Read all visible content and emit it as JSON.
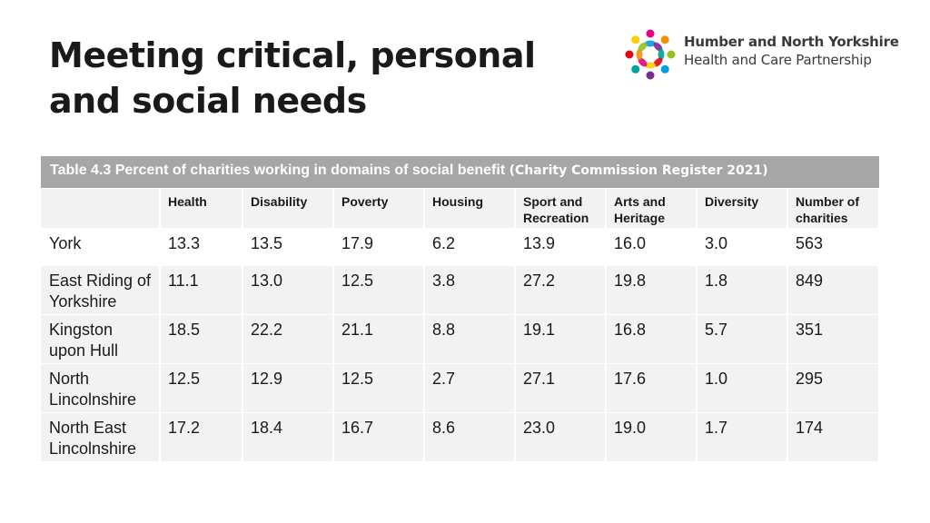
{
  "slide": {
    "title": "Meeting critical, personal and social needs"
  },
  "logo": {
    "line1": "Humber and North Yorkshire",
    "line2": "Health and Care Partnership",
    "colors": [
      "#e6007e",
      "#f39200",
      "#95c11f",
      "#009fe3",
      "#7b2a8f",
      "#00a19a",
      "#e30613",
      "#ffcc00"
    ]
  },
  "table": {
    "caption_main": "Table 4.3 Percent of charities working in domains of social benefit ",
    "caption_source": "(Charity Commission Register 2021)",
    "headers": [
      "",
      "Health",
      "Disability",
      "Poverty",
      "Housing",
      "Sport and Recreation",
      "Arts and Heritage",
      "Diversity",
      "Number of charities"
    ],
    "rows": [
      [
        "York",
        "13.3",
        "13.5",
        "17.9",
        "6.2",
        "13.9",
        "16.0",
        "3.0",
        "563"
      ],
      [
        "East Riding of Yorkshire",
        "11.1",
        "13.0",
        "12.5",
        "3.8",
        "27.2",
        "19.8",
        "1.8",
        "849"
      ],
      [
        "Kingston upon Hull",
        "18.5",
        "22.2",
        "21.1",
        "8.8",
        "19.1",
        "16.8",
        "5.7",
        "351"
      ],
      [
        "North Lincolnshire",
        "12.5",
        "12.9",
        "12.5",
        "2.7",
        "27.1",
        "17.6",
        "1.0",
        "295"
      ],
      [
        "North East Lincolnshire",
        "17.2",
        "18.4",
        "16.7",
        "8.6",
        "23.0",
        "19.0",
        "1.7",
        "174"
      ]
    ]
  }
}
